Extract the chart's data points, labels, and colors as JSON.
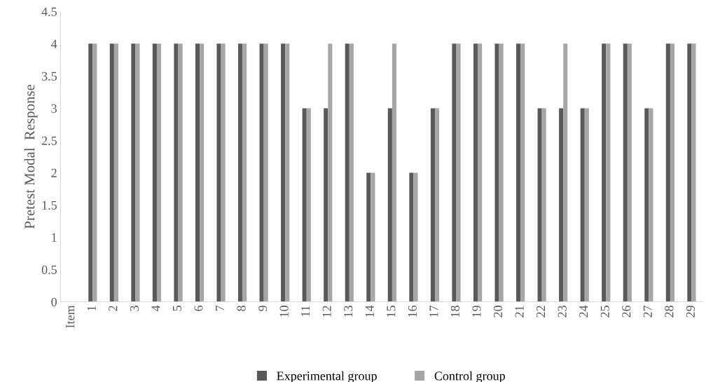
{
  "chart_data": {
    "type": "bar",
    "ylabel": "Pretest Modal  Response",
    "categories": [
      "Item",
      "1",
      "2",
      "3",
      "4",
      "5",
      "6",
      "7",
      "8",
      "9",
      "10",
      "11",
      "12",
      "13",
      "14",
      "15",
      "16",
      "17",
      "18",
      "19",
      "20",
      "21",
      "22",
      "23",
      "24",
      "25",
      "26",
      "27",
      "28",
      "29"
    ],
    "series": [
      {
        "name": "Experimental group",
        "color": "#595959",
        "values": [
          null,
          4,
          4,
          4,
          4,
          4,
          4,
          4,
          4,
          4,
          4,
          3,
          3,
          4,
          2,
          3,
          2,
          3,
          4,
          4,
          4,
          4,
          3,
          3,
          3,
          4,
          4,
          3,
          4,
          4
        ]
      },
      {
        "name": "Control group",
        "color": "#a6a6a6",
        "values": [
          null,
          4,
          4,
          4,
          4,
          4,
          4,
          4,
          4,
          4,
          4,
          3,
          4,
          4,
          2,
          4,
          2,
          3,
          4,
          4,
          4,
          4,
          3,
          4,
          3,
          4,
          4,
          3,
          4,
          4
        ]
      }
    ],
    "ylim": [
      0,
      4.5
    ],
    "yticks": [
      0,
      0.5,
      1,
      1.5,
      2,
      2.5,
      3,
      3.5,
      4,
      4.5
    ],
    "grid": false,
    "legend": "bottom"
  }
}
